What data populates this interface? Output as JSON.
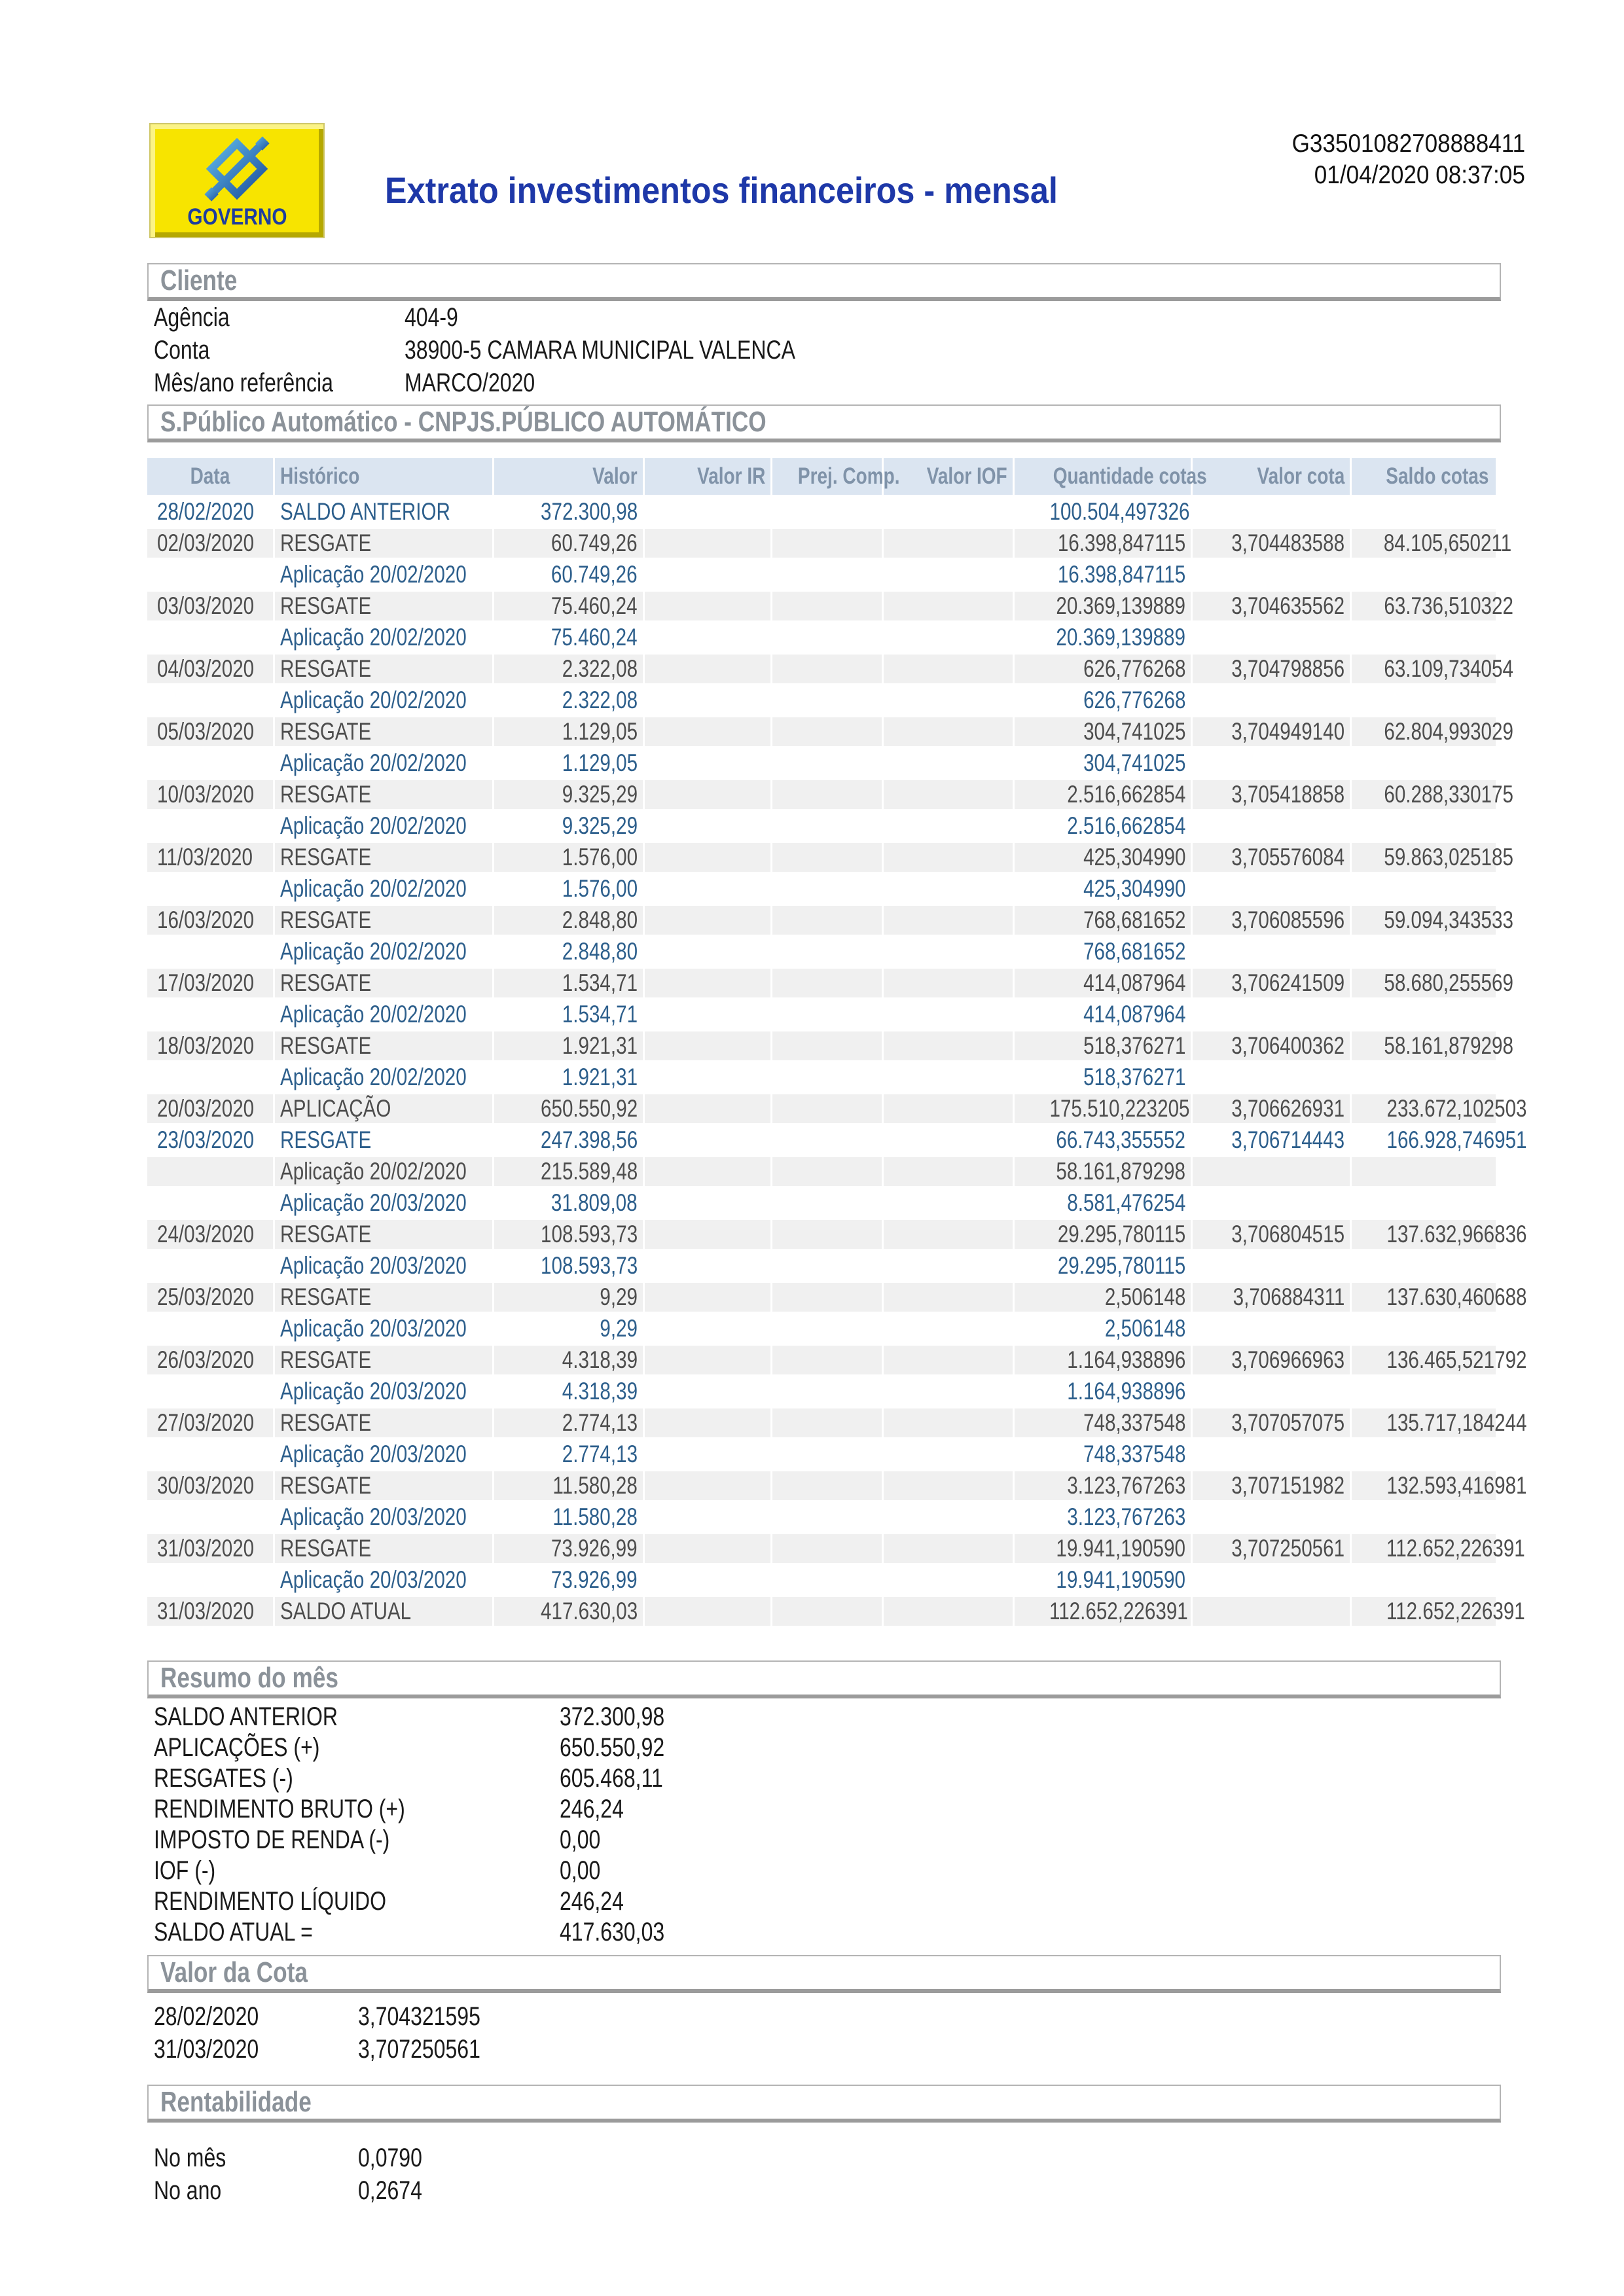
{
  "header": {
    "logo_caption": "GOVERNO",
    "title": "Extrato investimentos financeiros - mensal",
    "doc_code": "G33501082708888411",
    "timestamp": "01/04/2020 08:37:05"
  },
  "client": {
    "section_title": "Cliente",
    "fields": [
      {
        "label": "Agência",
        "value": "404-9"
      },
      {
        "label": "Conta",
        "value": "38900-5 CAMARA MUNICIPAL VALENCA"
      },
      {
        "label": "Mês/ano referência",
        "value": "MARCO/2020"
      }
    ]
  },
  "statement": {
    "section_title": "S.Público Automático - CNPJS.PÚBLICO AUTOMÁTICO",
    "columns": [
      "Data",
      "Histórico",
      "Valor",
      "Valor IR",
      "Prej. Comp.",
      "Valor IOF",
      "Quantidade cotas",
      "Valor cota",
      "Saldo cotas"
    ],
    "rows": [
      [
        "28/02/2020",
        "SALDO ANTERIOR",
        "372.300,98",
        "",
        "",
        "",
        "100.504,497326",
        "",
        ""
      ],
      [
        "02/03/2020",
        "RESGATE",
        "60.749,26",
        "",
        "",
        "",
        "16.398,847115",
        "3,704483588",
        "84.105,650211"
      ],
      [
        "",
        "Aplicação 20/02/2020",
        "60.749,26",
        "",
        "",
        "",
        "16.398,847115",
        "",
        ""
      ],
      [
        "03/03/2020",
        "RESGATE",
        "75.460,24",
        "",
        "",
        "",
        "20.369,139889",
        "3,704635562",
        "63.736,510322"
      ],
      [
        "",
        "Aplicação 20/02/2020",
        "75.460,24",
        "",
        "",
        "",
        "20.369,139889",
        "",
        ""
      ],
      [
        "04/03/2020",
        "RESGATE",
        "2.322,08",
        "",
        "",
        "",
        "626,776268",
        "3,704798856",
        "63.109,734054"
      ],
      [
        "",
        "Aplicação 20/02/2020",
        "2.322,08",
        "",
        "",
        "",
        "626,776268",
        "",
        ""
      ],
      [
        "05/03/2020",
        "RESGATE",
        "1.129,05",
        "",
        "",
        "",
        "304,741025",
        "3,704949140",
        "62.804,993029"
      ],
      [
        "",
        "Aplicação 20/02/2020",
        "1.129,05",
        "",
        "",
        "",
        "304,741025",
        "",
        ""
      ],
      [
        "10/03/2020",
        "RESGATE",
        "9.325,29",
        "",
        "",
        "",
        "2.516,662854",
        "3,705418858",
        "60.288,330175"
      ],
      [
        "",
        "Aplicação 20/02/2020",
        "9.325,29",
        "",
        "",
        "",
        "2.516,662854",
        "",
        ""
      ],
      [
        "11/03/2020",
        "RESGATE",
        "1.576,00",
        "",
        "",
        "",
        "425,304990",
        "3,705576084",
        "59.863,025185"
      ],
      [
        "",
        "Aplicação 20/02/2020",
        "1.576,00",
        "",
        "",
        "",
        "425,304990",
        "",
        ""
      ],
      [
        "16/03/2020",
        "RESGATE",
        "2.848,80",
        "",
        "",
        "",
        "768,681652",
        "3,706085596",
        "59.094,343533"
      ],
      [
        "",
        "Aplicação 20/02/2020",
        "2.848,80",
        "",
        "",
        "",
        "768,681652",
        "",
        ""
      ],
      [
        "17/03/2020",
        "RESGATE",
        "1.534,71",
        "",
        "",
        "",
        "414,087964",
        "3,706241509",
        "58.680,255569"
      ],
      [
        "",
        "Aplicação 20/02/2020",
        "1.534,71",
        "",
        "",
        "",
        "414,087964",
        "",
        ""
      ],
      [
        "18/03/2020",
        "RESGATE",
        "1.921,31",
        "",
        "",
        "",
        "518,376271",
        "3,706400362",
        "58.161,879298"
      ],
      [
        "",
        "Aplicação 20/02/2020",
        "1.921,31",
        "",
        "",
        "",
        "518,376271",
        "",
        ""
      ],
      [
        "20/03/2020",
        "APLICAÇÃO",
        "650.550,92",
        "",
        "",
        "",
        "175.510,223205",
        "3,706626931",
        "233.672,102503"
      ],
      [
        "23/03/2020",
        "RESGATE",
        "247.398,56",
        "",
        "",
        "",
        "66.743,355552",
        "3,706714443",
        "166.928,746951"
      ],
      [
        "",
        "Aplicação 20/02/2020",
        "215.589,48",
        "",
        "",
        "",
        "58.161,879298",
        "",
        ""
      ],
      [
        "",
        "Aplicação 20/03/2020",
        "31.809,08",
        "",
        "",
        "",
        "8.581,476254",
        "",
        ""
      ],
      [
        "24/03/2020",
        "RESGATE",
        "108.593,73",
        "",
        "",
        "",
        "29.295,780115",
        "3,706804515",
        "137.632,966836"
      ],
      [
        "",
        "Aplicação 20/03/2020",
        "108.593,73",
        "",
        "",
        "",
        "29.295,780115",
        "",
        ""
      ],
      [
        "25/03/2020",
        "RESGATE",
        "9,29",
        "",
        "",
        "",
        "2,506148",
        "3,706884311",
        "137.630,460688"
      ],
      [
        "",
        "Aplicação 20/03/2020",
        "9,29",
        "",
        "",
        "",
        "2,506148",
        "",
        ""
      ],
      [
        "26/03/2020",
        "RESGATE",
        "4.318,39",
        "",
        "",
        "",
        "1.164,938896",
        "3,706966963",
        "136.465,521792"
      ],
      [
        "",
        "Aplicação 20/03/2020",
        "4.318,39",
        "",
        "",
        "",
        "1.164,938896",
        "",
        ""
      ],
      [
        "27/03/2020",
        "RESGATE",
        "2.774,13",
        "",
        "",
        "",
        "748,337548",
        "3,707057075",
        "135.717,184244"
      ],
      [
        "",
        "Aplicação 20/03/2020",
        "2.774,13",
        "",
        "",
        "",
        "748,337548",
        "",
        ""
      ],
      [
        "30/03/2020",
        "RESGATE",
        "11.580,28",
        "",
        "",
        "",
        "3.123,767263",
        "3,707151982",
        "132.593,416981"
      ],
      [
        "",
        "Aplicação 20/03/2020",
        "11.580,28",
        "",
        "",
        "",
        "3.123,767263",
        "",
        ""
      ],
      [
        "31/03/2020",
        "RESGATE",
        "73.926,99",
        "",
        "",
        "",
        "19.941,190590",
        "3,707250561",
        "112.652,226391"
      ],
      [
        "",
        "Aplicação 20/03/2020",
        "73.926,99",
        "",
        "",
        "",
        "19.941,190590",
        "",
        ""
      ],
      [
        "31/03/2020",
        "SALDO ATUAL",
        "417.630,03",
        "",
        "",
        "",
        "112.652,226391",
        "",
        "112.652,226391"
      ]
    ]
  },
  "summary": {
    "section_title": "Resumo do mês",
    "fields": [
      {
        "label": "SALDO ANTERIOR",
        "value": "372.300,98"
      },
      {
        "label": "APLICAÇÕES (+)",
        "value": "650.550,92"
      },
      {
        "label": "RESGATES (-)",
        "value": "605.468,11"
      },
      {
        "label": "RENDIMENTO BRUTO (+)",
        "value": "246,24"
      },
      {
        "label": "IMPOSTO DE RENDA (-)",
        "value": "0,00"
      },
      {
        "label": "IOF (-)",
        "value": "0,00"
      },
      {
        "label": "RENDIMENTO LÍQUIDO",
        "value": "246,24"
      },
      {
        "label": "SALDO ATUAL =",
        "value": "417.630,03"
      }
    ]
  },
  "quota_value": {
    "section_title": "Valor da Cota",
    "fields": [
      {
        "label": "28/02/2020",
        "value": "3,704321595"
      },
      {
        "label": "31/03/2020",
        "value": "3,707250561"
      }
    ]
  },
  "profitability": {
    "section_title": "Rentabilidade",
    "fields": [
      {
        "label": "No mês",
        "value": "0,0790"
      },
      {
        "label": "No ano",
        "value": "0,2674"
      }
    ]
  },
  "colors": {
    "title_blue": "#1e38a8",
    "table_header_bg": "#dbe5f1",
    "table_header_text": "#8093a9",
    "row_alt_bg": "#f0f0f0",
    "row_blue_text": "#2d5f8c",
    "row_dark_text": "#4d4d4d",
    "section_title_text": "#8b9299",
    "logo_yellow": "#f7e400",
    "logo_blue_dark": "#1c4f9c",
    "logo_blue_light": "#5fb8e8"
  }
}
